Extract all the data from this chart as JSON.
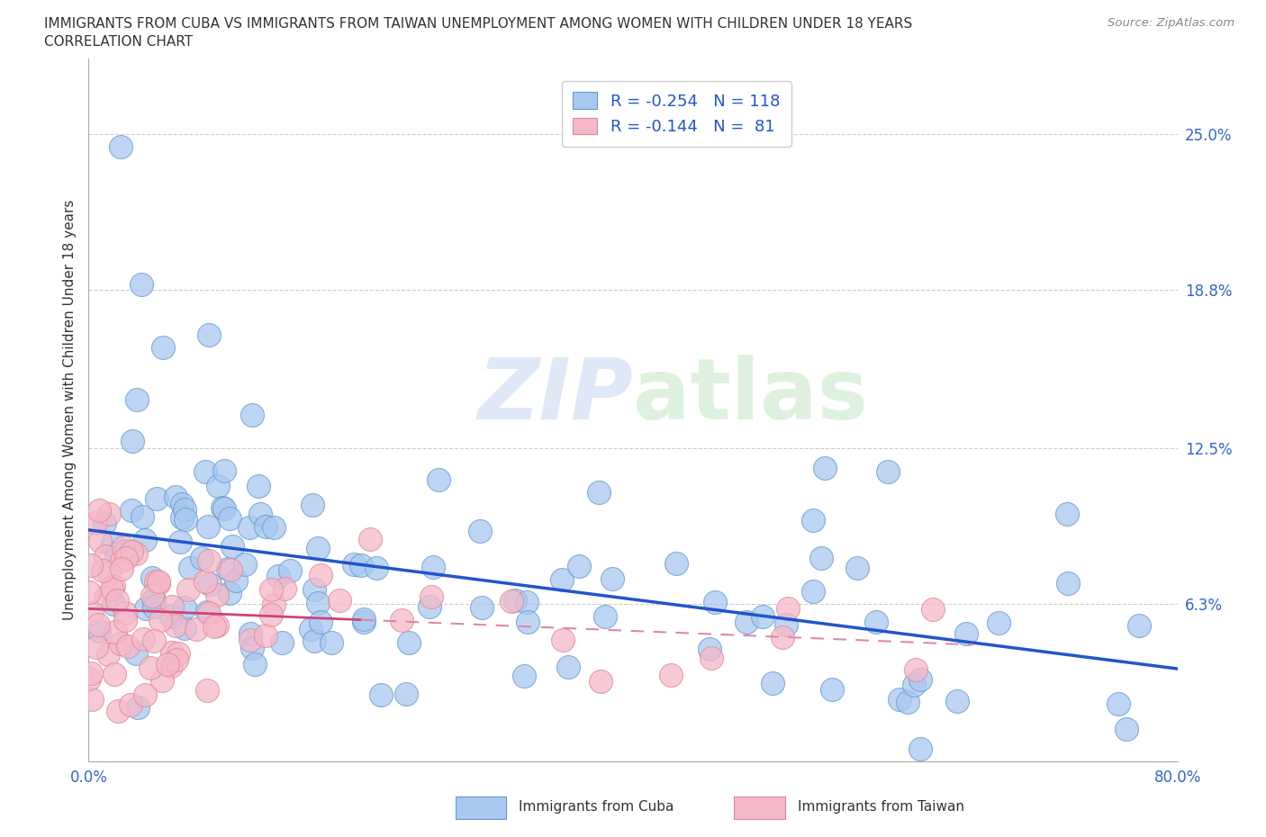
{
  "title_line1": "IMMIGRANTS FROM CUBA VS IMMIGRANTS FROM TAIWAN UNEMPLOYMENT AMONG WOMEN WITH CHILDREN UNDER 18 YEARS",
  "title_line2": "CORRELATION CHART",
  "source": "Source: ZipAtlas.com",
  "ylabel": "Unemployment Among Women with Children Under 18 years",
  "xlim": [
    0.0,
    0.8
  ],
  "ylim": [
    0.0,
    0.28
  ],
  "ytick_vals": [
    0.0,
    0.063,
    0.125,
    0.188,
    0.25
  ],
  "ytick_labels": [
    "",
    "6.3%",
    "12.5%",
    "18.8%",
    "25.0%"
  ],
  "xtick_vals": [
    0.0,
    0.1,
    0.2,
    0.3,
    0.4,
    0.5,
    0.6,
    0.7,
    0.8
  ],
  "xtick_labels": [
    "0.0%",
    "",
    "",
    "",
    "",
    "",
    "",
    "",
    "80.0%"
  ],
  "watermark": "ZIPatlas",
  "cuba_color": "#a8c8f0",
  "cuba_edge_color": "#6699cc",
  "taiwan_color": "#f5b8c8",
  "taiwan_edge_color": "#dd8899",
  "cuba_line_color": "#2255cc",
  "taiwan_line_color": "#cc4477",
  "taiwan_dash_color": "#dd88aa",
  "legend_cuba_R": "-0.254",
  "legend_cuba_N": "118",
  "legend_taiwan_R": "-0.144",
  "legend_taiwan_N": " 81",
  "tick_label_color": "#3366cc",
  "title_color": "#333333",
  "source_color": "#888888",
  "background_color": "#ffffff",
  "grid_color": "#cccccc",
  "ylabel_color": "#333333"
}
